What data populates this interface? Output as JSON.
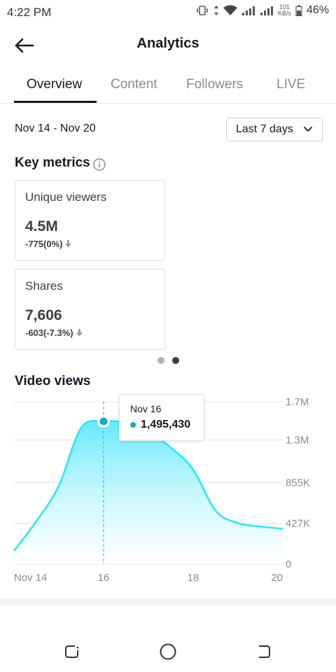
{
  "status": {
    "time": "4:22 PM",
    "speed_value": "101",
    "speed_unit": "KB/s",
    "battery": "46%"
  },
  "header": {
    "title": "Analytics"
  },
  "tabs": [
    {
      "label": "Overview",
      "active": true
    },
    {
      "label": "Content",
      "active": false
    },
    {
      "label": "Followers",
      "active": false
    },
    {
      "label": "LIVE",
      "active": false
    }
  ],
  "date_range": {
    "label": "Nov 14 - Nov 20",
    "selector": "Last 7 days"
  },
  "key_metrics": {
    "title": "Key metrics",
    "cards": [
      {
        "label": "Unique viewers",
        "value": "4.5M",
        "delta": "-775(0%)"
      },
      {
        "label": "Shares",
        "value": "7,606",
        "delta": "-603(-7.3%)"
      }
    ],
    "pager": {
      "pages": 2,
      "current": 2
    }
  },
  "video_views": {
    "title": "Video views",
    "tooltip": {
      "date": "Nov 16",
      "value": "1,495,430"
    }
  },
  "colors": {
    "accent": "#25e6ff",
    "accent_fill_top": "#5ce8fb",
    "marker": "#18a9c4",
    "text": "#161823",
    "muted": "#8a8b91"
  },
  "icons": [
    "back-arrow-icon",
    "info-icon",
    "chevron-down-icon",
    "arrow-down-icon",
    "recents-icon",
    "home-icon",
    "back-nav-icon"
  ],
  "chart_data": {
    "type": "area",
    "title": "Video views",
    "x": [
      "Nov 14",
      "Nov 14.5",
      "Nov 15",
      "Nov 15.5",
      "Nov 16",
      "Nov 16.5",
      "Nov 17",
      "Nov 17.5",
      "Nov 18",
      "Nov 18.5",
      "Nov 19",
      "Nov 19.5",
      "Nov 20"
    ],
    "x_tick_labels": [
      "Nov 14",
      "16",
      "18",
      "20"
    ],
    "series": [
      {
        "values": [
          140000,
          450000,
          820000,
          1430000,
          1495430,
          1480000,
          1390000,
          1220000,
          990000,
          560000,
          430000,
          395000,
          370000
        ]
      }
    ],
    "y_tick_labels": [
      "0",
      "427K",
      "855K",
      "1.3M",
      "1.7M"
    ],
    "y_ticks": [
      0,
      427000,
      855000,
      1300000,
      1700000
    ],
    "ylim": [
      0,
      1700000
    ],
    "highlight": {
      "x": "Nov 16",
      "value": 1495430
    },
    "grid": true
  }
}
